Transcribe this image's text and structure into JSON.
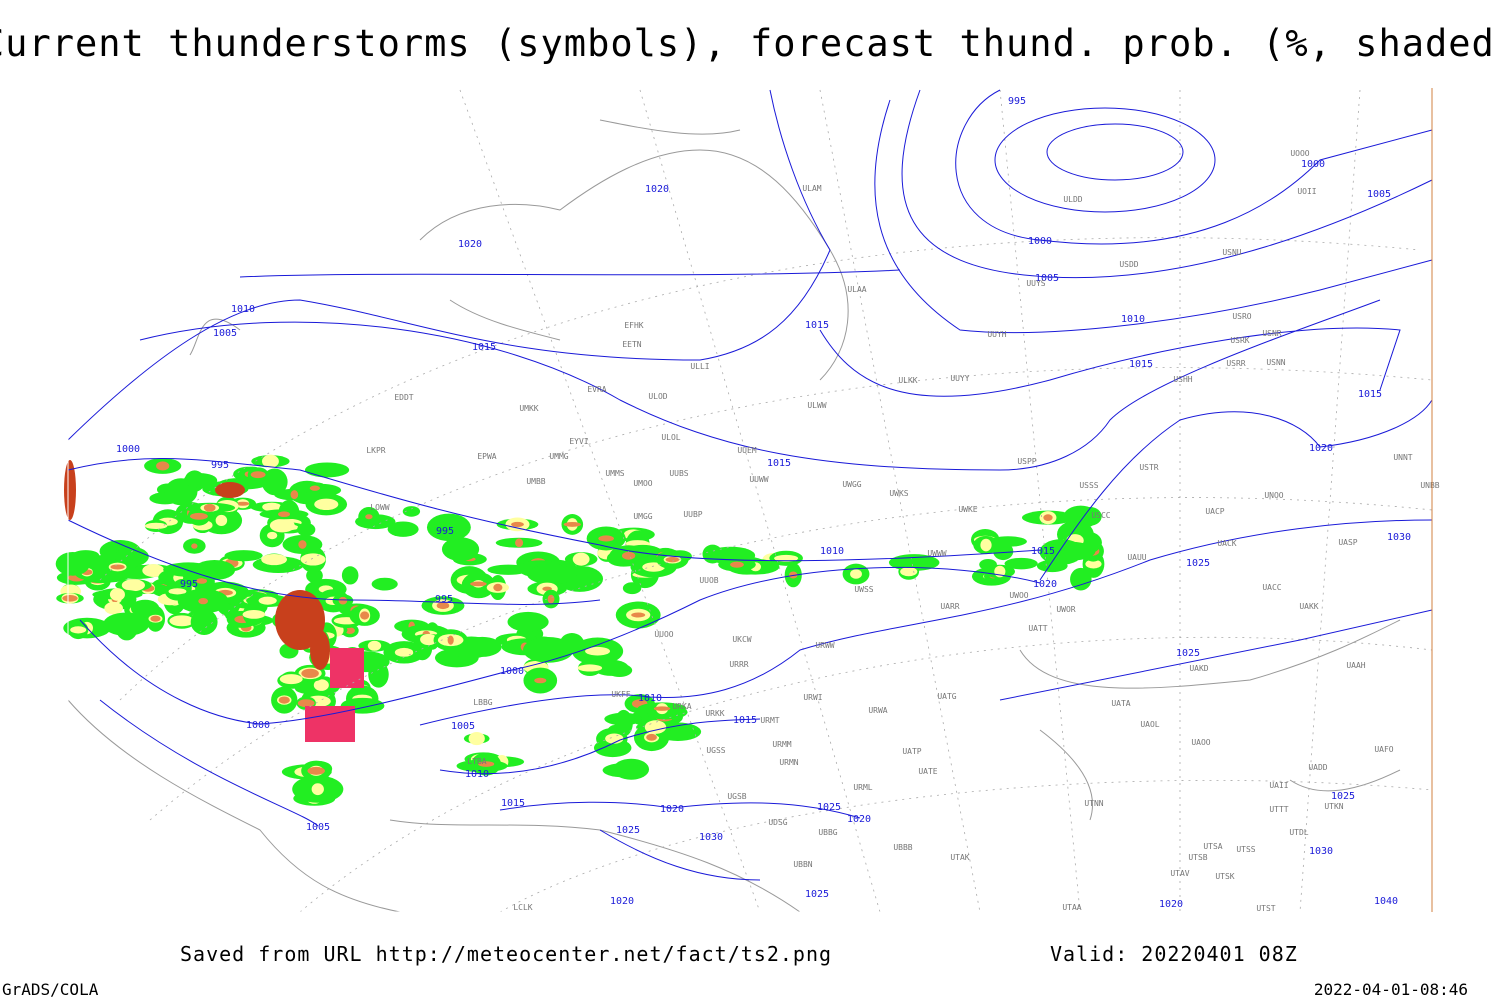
{
  "title": "Current thunderstorms (symbols), forecast thund. prob. (%, shaded)",
  "footer": {
    "saved": "Saved from URL http://meteocenter.net/fact/ts2.png",
    "valid": "Valid: 20220401 08Z",
    "credit": "GrADS/COLA",
    "timestamp": "2022-04-01-08:46"
  },
  "isobar_labels": [
    "995",
    "1020",
    "1020",
    "1000",
    "1005",
    "1000",
    "1005",
    "1010",
    "1005",
    "1015",
    "1015",
    "1010",
    "1015",
    "1015",
    "1020",
    "1000",
    "995",
    "1015",
    "995",
    "1010",
    "1015",
    "1020",
    "995",
    "995",
    "1030",
    "1025",
    "1000",
    "1025",
    "1010",
    "1000",
    "1005",
    "1015",
    "1010",
    "1015",
    "1020",
    "1025",
    "1020",
    "1025",
    "1030",
    "1005",
    "1025",
    "1030",
    "1025",
    "1020",
    "1020",
    "1040"
  ],
  "station_labels": [
    "UOOO",
    "UOII",
    "ULDD",
    "ULAM",
    "USDD",
    "USNU",
    "UUYS",
    "ULAA",
    "USRO",
    "USNR",
    "USRK",
    "UUYH",
    "EFHK",
    "EETN",
    "USRR",
    "USNN",
    "ULKK",
    "UUYY",
    "USHH",
    "ULLI",
    "EVRA",
    "ULOD",
    "EDDT",
    "UMKK",
    "ULWW",
    "EYVI",
    "ULOL",
    "UUEM",
    "LKPR",
    "EPWA",
    "UMMG",
    "USPP",
    "USTR",
    "UMMS",
    "UUBS",
    "UUWW",
    "UMOO",
    "UMBB",
    "UWGG",
    "UWKS",
    "USSS",
    "UNOO",
    "UNNT",
    "UNBB",
    "LOWW",
    "UWKE",
    "UUBP",
    "UMGG",
    "USCC",
    "UACP",
    "UASP",
    "UACK",
    "UWWW",
    "UAUU",
    "UUOB",
    "UWSS",
    "UARR",
    "UWOO",
    "UWOR",
    "UACC",
    "UAKK",
    "UATT",
    "UUOO",
    "UKCW",
    "URWW",
    "URRR",
    "UAKD",
    "UAAH",
    "LBBG",
    "UKFF",
    "URKA",
    "URKK",
    "URWI",
    "UATG",
    "UATA",
    "URMT",
    "URWA",
    "UAOL",
    "UAOO",
    "URMM",
    "UATP",
    "UAFO",
    "URMN",
    "UADD",
    "UATE",
    "LTBA",
    "UGSS",
    "URML",
    "UAII",
    "UTKN",
    "UTNN",
    "UTTT",
    "UDSG",
    "UBBG",
    "UGSB",
    "UTDL",
    "UBBB",
    "UTSS",
    "UTSA",
    "UTSB",
    "UTAK",
    "UBBN",
    "UTAV",
    "UTSK",
    "UTAA",
    "LCLK",
    "UTST"
  ]
}
